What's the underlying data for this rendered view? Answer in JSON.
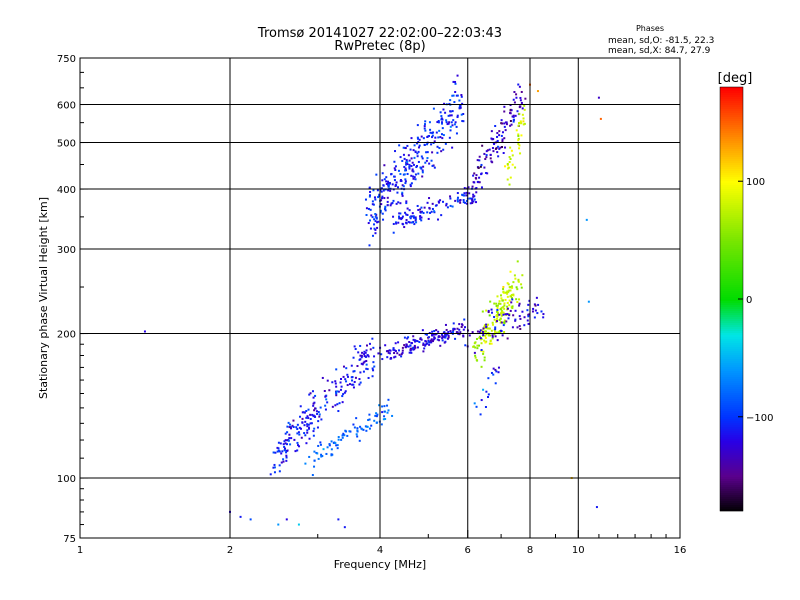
{
  "chart_data": {
    "type": "scatter",
    "title": "Tromsø 20141027 22:02:00–22:03:43",
    "subtitle": "RwPretec (8p)",
    "xlabel": "Frequency [MHz]",
    "ylabel": "Stationary phase Virtual Height [km]",
    "xscale": "log",
    "yscale": "log",
    "xlim": [
      1,
      16
    ],
    "ylim": [
      75,
      750
    ],
    "xticks": [
      1,
      2,
      4,
      6,
      8,
      10,
      16
    ],
    "xtick_labels": [
      "1",
      "2",
      "4",
      "6",
      "8",
      "10",
      "16"
    ],
    "yticks": [
      75,
      100,
      200,
      300,
      400,
      500,
      600,
      750
    ],
    "ytick_labels": [
      "75",
      "100",
      "200",
      "300",
      "400",
      "500",
      "600",
      "750"
    ],
    "grid": true,
    "phase_box": {
      "title": "Phases",
      "line1": "mean, sd,O: -81.5, 22.3",
      "line2": "mean, sd,X: 84.7, 27.9"
    },
    "colorbar": {
      "label": "[deg]",
      "range": [
        -180,
        180
      ],
      "ticks": [
        100,
        0,
        -100
      ],
      "tick_labels": [
        "100",
        "0",
        "−100"
      ]
    },
    "series": [
      {
        "clusters": [
          {
            "f0": 2.45,
            "f1": 3.9,
            "h0": 110,
            "h1": 185,
            "spread": 0.09,
            "n": 230,
            "phase": -110,
            "psd": 25
          },
          {
            "f0": 2.9,
            "f1": 4.2,
            "h0": 108,
            "h1": 140,
            "spread": 0.04,
            "n": 90,
            "phase": -80,
            "psd": 20
          },
          {
            "f0": 4.0,
            "f1": 5.9,
            "h0": 180,
            "h1": 205,
            "spread": 0.035,
            "n": 170,
            "phase": -120,
            "psd": 25
          },
          {
            "f0": 3.8,
            "f1": 5.9,
            "h0": 355,
            "h1": 610,
            "spread": 0.12,
            "n": 320,
            "phase": -105,
            "psd": 25
          },
          {
            "f0": 4.2,
            "f1": 6.2,
            "h0": 340,
            "h1": 390,
            "spread": 0.04,
            "n": 110,
            "phase": -110,
            "psd": 25
          },
          {
            "f0": 6.0,
            "f1": 7.8,
            "h0": 390,
            "h1": 640,
            "spread": 0.07,
            "n": 130,
            "phase": -130,
            "psd": 30
          },
          {
            "f0": 7.2,
            "f1": 7.9,
            "h0": 430,
            "h1": 590,
            "spread": 0.05,
            "n": 40,
            "phase": 85,
            "psd": 20
          },
          {
            "f0": 6.2,
            "f1": 7.6,
            "h0": 180,
            "h1": 260,
            "spread": 0.09,
            "n": 170,
            "phase": 75,
            "psd": 25
          },
          {
            "f0": 6.0,
            "f1": 8.4,
            "h0": 195,
            "h1": 230,
            "spread": 0.07,
            "n": 80,
            "phase": -125,
            "psd": 25
          },
          {
            "f0": 6.3,
            "f1": 7.0,
            "h0": 140,
            "h1": 175,
            "spread": 0.05,
            "n": 18,
            "phase": -110,
            "psd": 40
          }
        ],
        "points": [
          {
            "x": 1.35,
            "y": 202,
            "phase": -120
          },
          {
            "x": 2.0,
            "y": 85,
            "phase": -120
          },
          {
            "x": 2.1,
            "y": 83,
            "phase": -110
          },
          {
            "x": 2.2,
            "y": 82,
            "phase": -90
          },
          {
            "x": 2.5,
            "y": 80,
            "phase": -60
          },
          {
            "x": 2.6,
            "y": 82,
            "phase": -120
          },
          {
            "x": 2.75,
            "y": 80,
            "phase": -40
          },
          {
            "x": 3.3,
            "y": 82,
            "phase": -110
          },
          {
            "x": 3.4,
            "y": 79,
            "phase": -110
          },
          {
            "x": 10.4,
            "y": 345,
            "phase": -60
          },
          {
            "x": 10.5,
            "y": 233,
            "phase": -60
          },
          {
            "x": 10.9,
            "y": 87,
            "phase": -110
          },
          {
            "x": 11.0,
            "y": 620,
            "phase": -130
          },
          {
            "x": 11.1,
            "y": 560,
            "phase": 150
          },
          {
            "x": 9.7,
            "y": 100,
            "phase": 120
          },
          {
            "x": 8.0,
            "y": 660,
            "phase": 150
          },
          {
            "x": 8.3,
            "y": 640,
            "phase": 130
          }
        ]
      }
    ]
  }
}
